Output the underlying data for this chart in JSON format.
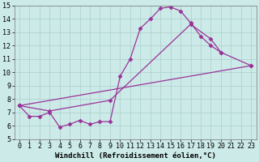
{
  "background_color": "#cceae7",
  "grid_color": "#aacfcc",
  "line_color": "#993399",
  "xlim": [
    -0.5,
    23.5
  ],
  "ylim": [
    5,
    15
  ],
  "xlabel": "Windchill (Refroidissement éolien,°C)",
  "xlabel_fontsize": 6.5,
  "xticks": [
    0,
    1,
    2,
    3,
    4,
    5,
    6,
    7,
    8,
    9,
    10,
    11,
    12,
    13,
    14,
    15,
    16,
    17,
    18,
    19,
    20,
    21,
    22,
    23
  ],
  "yticks": [
    5,
    6,
    7,
    8,
    9,
    10,
    11,
    12,
    13,
    14,
    15
  ],
  "tick_fontsize": 6.0,
  "line1_x": [
    0,
    1,
    2,
    3,
    4,
    5,
    6,
    7,
    8,
    9,
    10,
    11,
    12,
    13,
    14,
    15,
    16,
    17,
    18,
    19,
    20
  ],
  "line1_y": [
    7.5,
    6.7,
    6.7,
    7.0,
    5.9,
    6.1,
    6.4,
    6.1,
    6.3,
    6.3,
    9.7,
    11.0,
    13.3,
    14.0,
    14.8,
    14.9,
    14.6,
    13.7,
    12.7,
    12.0,
    11.5
  ],
  "line2_x": [
    0,
    23
  ],
  "line2_y": [
    7.5,
    10.5
  ],
  "line3_x": [
    0,
    3,
    9,
    17,
    19,
    20,
    23
  ],
  "line3_y": [
    7.5,
    7.1,
    7.9,
    13.6,
    12.5,
    11.5,
    10.5
  ]
}
